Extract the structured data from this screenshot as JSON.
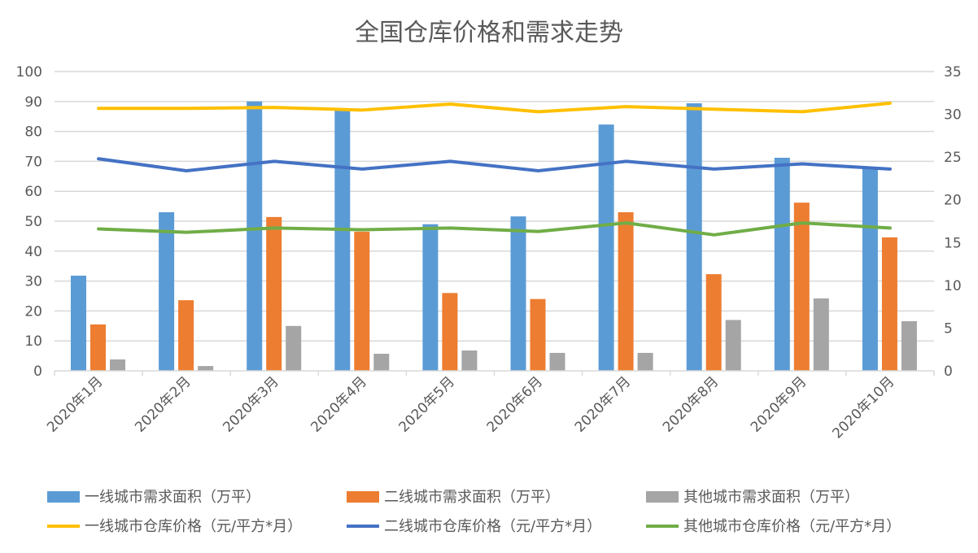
{
  "chart_data": {
    "type": "bar+line",
    "title": "全国仓库价格和需求走势",
    "categories": [
      "2020年1月",
      "2020年2月",
      "2020年3月",
      "2020年4月",
      "2020年5月",
      "2020年6月",
      "2020年7月",
      "2020年8月",
      "2020年9月",
      "2020年10月"
    ],
    "y_left": {
      "range": [
        0,
        100
      ],
      "ticks": [
        0,
        10,
        20,
        30,
        40,
        50,
        60,
        70,
        80,
        90,
        100
      ]
    },
    "y_right": {
      "range": [
        0,
        35
      ],
      "ticks": [
        0,
        5,
        10,
        15,
        20,
        25,
        30,
        35
      ]
    },
    "grid": true,
    "legend_position": "bottom",
    "bar_series": [
      {
        "name": "一线城市需求面积（万平）",
        "color": "#5B9BD5",
        "axis": "left",
        "values": [
          31.8,
          53,
          90,
          87,
          49,
          51.6,
          82.3,
          89.4,
          71.2,
          67.4
        ]
      },
      {
        "name": "二线城市需求面积（万平）",
        "color": "#ED7D31",
        "axis": "left",
        "values": [
          15.5,
          23.6,
          51.4,
          46.5,
          26,
          24,
          53,
          32.3,
          56.2,
          44.6
        ]
      },
      {
        "name": "其他城市需求面积（万平）",
        "color": "#A5A5A5",
        "axis": "left",
        "values": [
          3.8,
          1.6,
          15,
          5.7,
          6.8,
          6,
          6,
          17,
          24.2,
          16.6
        ]
      }
    ],
    "line_series": [
      {
        "name": "一线城市仓库价格（元/平方*月）",
        "color": "#FFC000",
        "axis": "right",
        "values": [
          30.7,
          30.7,
          30.8,
          30.5,
          31.2,
          30.3,
          30.9,
          30.6,
          30.3,
          31.3
        ]
      },
      {
        "name": "二线城市仓库价格（元/平方*月）",
        "color": "#4472C4",
        "axis": "right",
        "values": [
          24.8,
          23.4,
          24.5,
          23.6,
          24.5,
          23.4,
          24.5,
          23.6,
          24.2,
          23.6
        ]
      },
      {
        "name": "其他城市仓库价格（元/平方*月）",
        "color": "#70AD47",
        "axis": "right",
        "values": [
          16.6,
          16.2,
          16.7,
          16.5,
          16.7,
          16.3,
          17.3,
          15.9,
          17.3,
          16.7
        ]
      }
    ]
  }
}
